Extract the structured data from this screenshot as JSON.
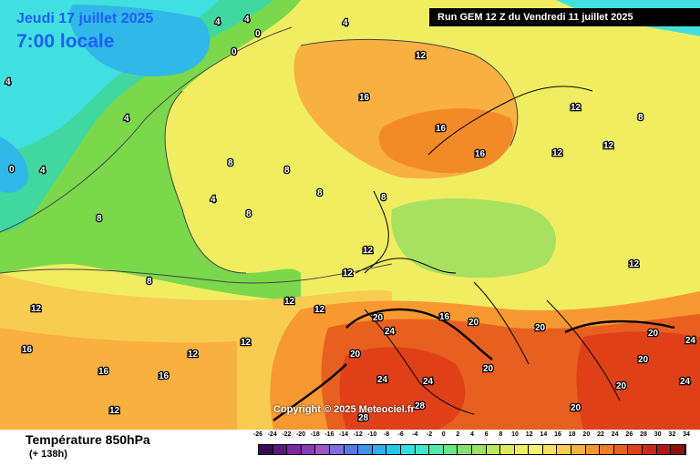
{
  "header": {
    "valid_date": "Jeudi 17 juillet 2025",
    "valid_time": "7:00 locale",
    "run_info": "Run GEM 12 Z du Vendredi 11 juillet 2025"
  },
  "copyright": "Copyright © 2025 Meteociel.fr",
  "footer": {
    "parameter": "Température 850hPa",
    "lead_time": "(+ 138h)"
  },
  "colors": {
    "green": "#7ad84a",
    "light_green": "#a8e060",
    "yellow": "#f0ee60",
    "light_yellow": "#fbf4a0",
    "orange": "#f8b040",
    "dark_orange": "#f28a28",
    "red": "#e84020",
    "dark_red": "#c81818",
    "cyan": "#40e0e0",
    "dark_cyan": "#30b8e8"
  },
  "scale": {
    "labels": [
      "-26",
      "-24",
      "-22",
      "-20",
      "-18",
      "-16",
      "-14",
      "-12",
      "-10",
      "-8",
      "-6",
      "-4",
      "-2",
      "0",
      "2",
      "4",
      "6",
      "8",
      "10",
      "12",
      "14",
      "16",
      "18",
      "20",
      "22",
      "24",
      "26",
      "28",
      "30",
      "32",
      "34"
    ],
    "colors": [
      "#3a0a52",
      "#5a1a7a",
      "#7a2aa0",
      "#8c3cb4",
      "#9a58c8",
      "#7e6ee0",
      "#5878ec",
      "#4094f0",
      "#2cb0f0",
      "#20c8ec",
      "#30e0e4",
      "#40e8c8",
      "#50eca8",
      "#68e888",
      "#84e06c",
      "#a0e060",
      "#bce85c",
      "#d8ec5c",
      "#ecf060",
      "#f8f070",
      "#f8e060",
      "#f8cc50",
      "#f8b040",
      "#f89830",
      "#f08028",
      "#e86020",
      "#e04018",
      "#cc2818",
      "#b01818",
      "#901010"
    ]
  },
  "map_labels": [
    {
      "text": "4"
    },
    {
      "text": "4"
    },
    {
      "text": "0"
    },
    {
      "text": "4"
    },
    {
      "text": "0"
    },
    {
      "text": "4"
    },
    {
      "text": "12"
    },
    {
      "text": "16"
    },
    {
      "text": "16"
    },
    {
      "text": "16"
    },
    {
      "text": "12"
    },
    {
      "text": "8"
    },
    {
      "text": "12"
    },
    {
      "text": "12"
    },
    {
      "text": "8"
    },
    {
      "text": "8"
    },
    {
      "text": "4"
    },
    {
      "text": "8"
    },
    {
      "text": "8"
    },
    {
      "text": "8"
    },
    {
      "text": "12"
    },
    {
      "text": "12"
    },
    {
      "text": "12"
    },
    {
      "text": "12"
    },
    {
      "text": "12"
    },
    {
      "text": "20"
    },
    {
      "text": "24"
    },
    {
      "text": "20"
    },
    {
      "text": "20"
    },
    {
      "text": "24"
    },
    {
      "text": "24"
    },
    {
      "text": "28"
    },
    {
      "text": "28"
    },
    {
      "text": "20"
    },
    {
      "text": "20"
    },
    {
      "text": "24"
    },
    {
      "text": "20"
    },
    {
      "text": "16"
    },
    {
      "text": "16"
    },
    {
      "text": "16"
    },
    {
      "text": "12"
    },
    {
      "text": "12"
    },
    {
      "text": "4"
    },
    {
      "text": "0"
    },
    {
      "text": "4"
    },
    {
      "text": "8"
    },
    {
      "text": "8"
    },
    {
      "text": "12"
    },
    {
      "text": "12"
    },
    {
      "text": "16"
    },
    {
      "text": "20"
    },
    {
      "text": "20"
    },
    {
      "text": "24"
    },
    {
      "text": "20"
    }
  ]
}
